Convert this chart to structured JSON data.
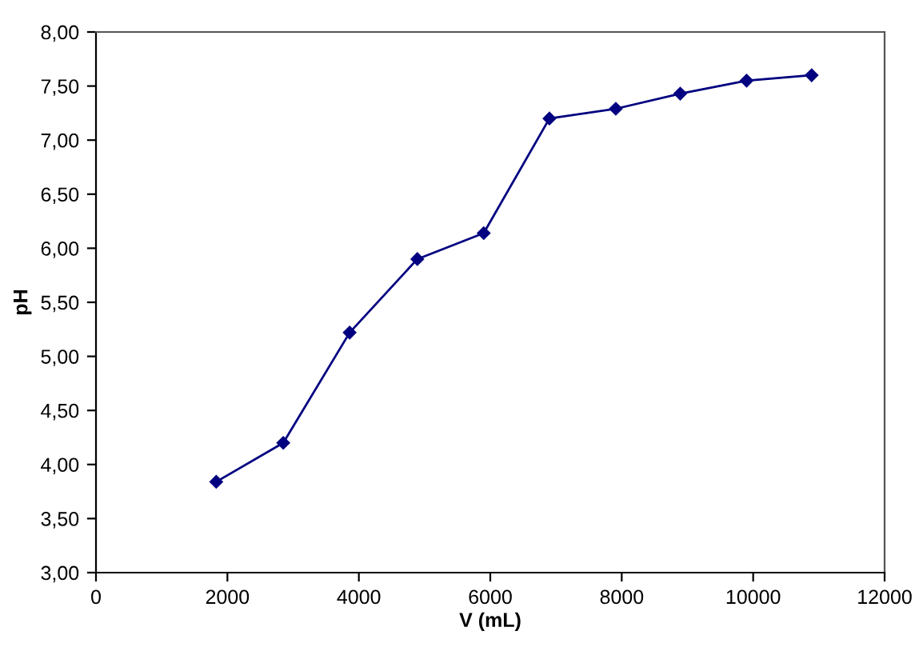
{
  "chart_data": {
    "type": "line",
    "xlabel": "V (mL)",
    "ylabel": "pH",
    "x": [
      1830,
      2850,
      3860,
      4890,
      5900,
      6900,
      7910,
      8890,
      9900,
      10890
    ],
    "series": [
      {
        "color": "#000080",
        "values": [
          3.84,
          4.2,
          5.22,
          5.9,
          6.14,
          7.2,
          7.29,
          7.43,
          7.55,
          7.6
        ]
      }
    ],
    "xlim": [
      0,
      12000
    ],
    "xticks": [
      0,
      2000,
      4000,
      6000,
      8000,
      10000,
      12000
    ],
    "ylim": [
      3,
      8
    ],
    "yticks": [
      {
        "value": 3,
        "label": "3,00"
      },
      {
        "value": 3.5,
        "label": "3,50"
      },
      {
        "value": 4,
        "label": "4,00"
      },
      {
        "value": 4.5,
        "label": "4,50"
      },
      {
        "value": 5,
        "label": "5,00"
      },
      {
        "value": 5.5,
        "label": "5,50"
      },
      {
        "value": 6,
        "label": "6,00"
      },
      {
        "value": 6.5,
        "label": "6,50"
      },
      {
        "value": 7,
        "label": "7,00"
      },
      {
        "value": 7.5,
        "label": "7,50"
      },
      {
        "value": 8,
        "label": "8,00"
      }
    ],
    "marker": "diamond",
    "line_style": "solid",
    "grid": false
  }
}
